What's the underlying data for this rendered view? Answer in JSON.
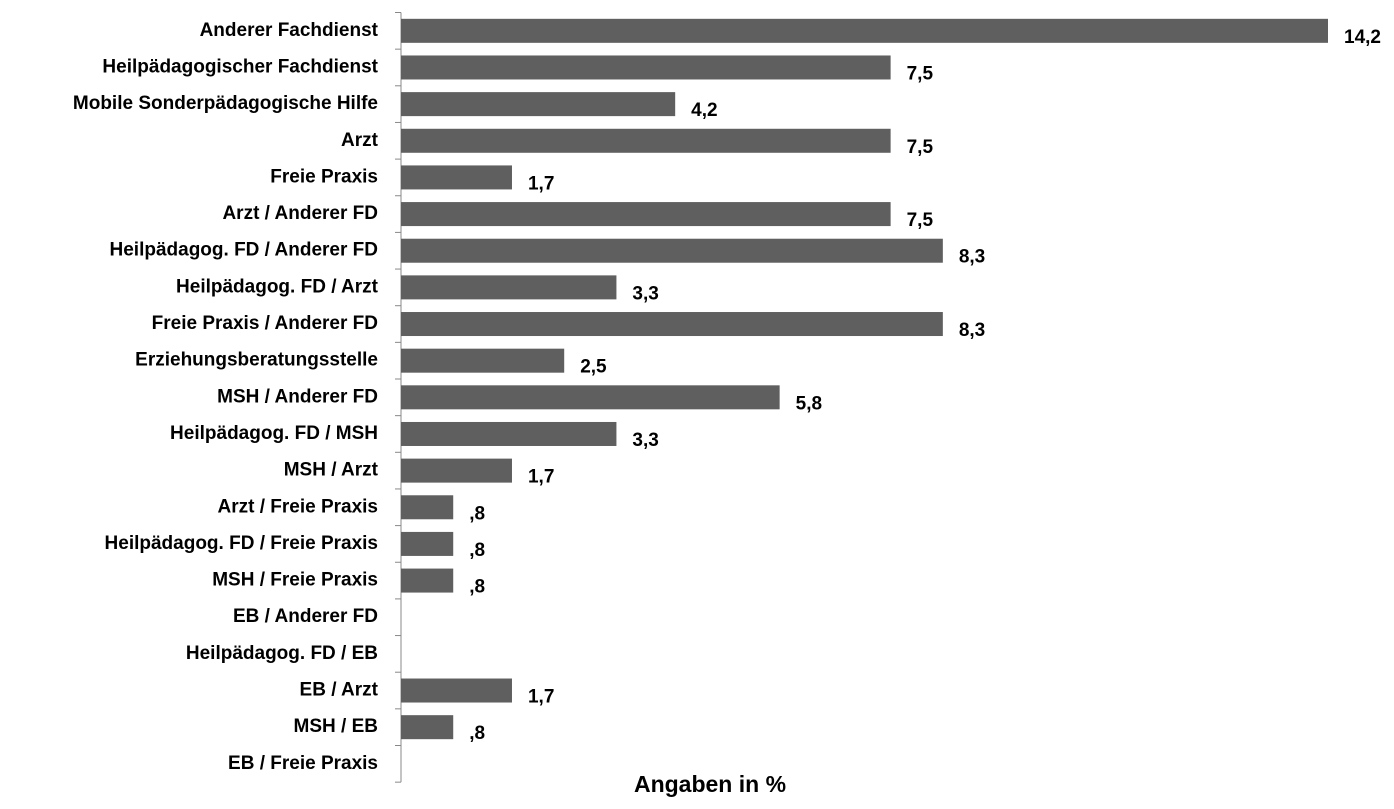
{
  "chart_data": {
    "type": "bar",
    "orientation": "horizontal",
    "x_label": "Angaben in %",
    "categories": [
      "Anderer Fachdienst",
      "Heilpädagogischer Fachdienst",
      "Mobile Sonderpädagogische Hilfe",
      "Arzt",
      "Freie Praxis",
      "Arzt  / Anderer FD",
      "Heilpädagog. FD / Anderer FD",
      "Heilpädagog. FD / Arzt",
      "Freie Praxis / Anderer FD",
      "Erziehungsberatungsstelle",
      "MSH / Anderer FD",
      "Heilpädagog. FD / MSH",
      "MSH / Arzt",
      "Arzt / Freie Praxis",
      "Heilpädagog. FD / Freie Praxis",
      "MSH / Freie Praxis",
      "EB / Anderer FD",
      "Heilpädagog. FD / EB",
      "EB / Arzt",
      "MSH / EB",
      "EB / Freie Praxis"
    ],
    "values": [
      14.2,
      7.5,
      4.2,
      7.5,
      1.7,
      7.5,
      8.3,
      3.3,
      8.3,
      2.5,
      5.8,
      3.3,
      1.7,
      0.8,
      0.8,
      0.8,
      null,
      null,
      1.7,
      0.8,
      null
    ],
    "value_labels": [
      "14,2",
      "7,5",
      "4,2",
      "7,5",
      "1,7",
      "7,5",
      "8,3",
      "3,3",
      "8,3",
      "2,5",
      "5,8",
      "3,3",
      "1,7",
      ",8",
      ",8",
      ",8",
      null,
      null,
      "1,7",
      ",8",
      null
    ],
    "color": "#5f5f5f"
  }
}
